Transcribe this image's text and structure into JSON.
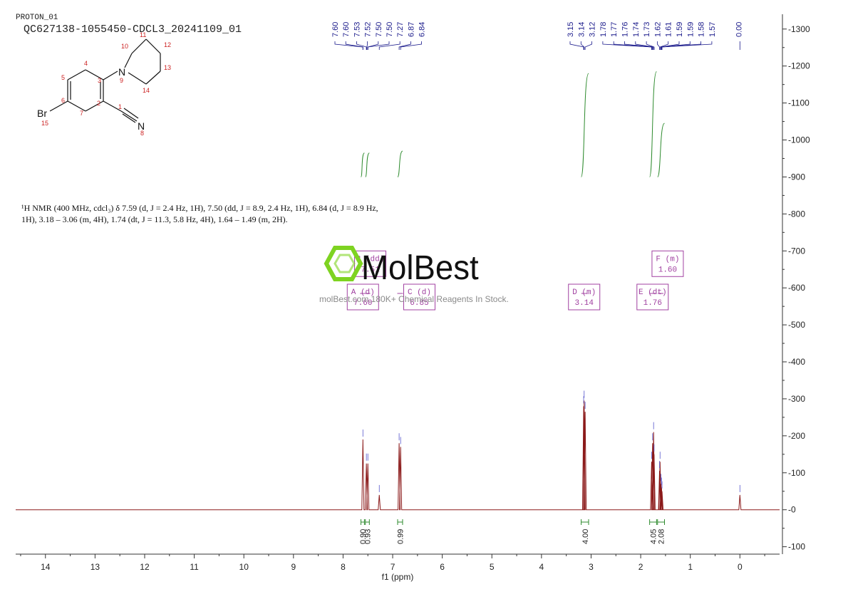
{
  "header": {
    "experiment": "PROTON_01",
    "sample": "QC627138-1055450-CDCL3_20241109_01"
  },
  "nmr_description": {
    "line1": "¹H NMR (400 MHz, cdcl₃) δ 7.59 (d, J = 2.4 Hz, 1H), 7.50 (dd, J = 8.9, 2.4 Hz, 1H), 6.84 (d, J = 8.9 Hz,",
    "line2": "1H), 3.18 – 3.06 (m, 4H), 1.74 (dt, J = 11.3, 5.8 Hz, 4H), 1.64 – 1.49 (m, 2H)."
  },
  "watermark": {
    "brand": "MolBest",
    "tagline": "molBest.com,180K+ Chemical Reagents In Stock.",
    "color": "#7ed321"
  },
  "molecule": {
    "atoms": [
      "N",
      "N",
      "Br"
    ],
    "numbers": [
      "1",
      "2",
      "3",
      "4",
      "5",
      "6",
      "7",
      "8",
      "9",
      "10",
      "11",
      "12",
      "13",
      "14",
      "15"
    ]
  },
  "colors": {
    "spectrum": "#8b1a1a",
    "integral": "#2e8b2e",
    "peak_label": "#1a1a8b",
    "multiplet_box": "#a040a0"
  },
  "chart_data": {
    "type": "line",
    "xlabel": "f1 (ppm)",
    "xlim": [
      14.6,
      -0.8
    ],
    "ylim": [
      -120,
      1340
    ],
    "x_ticks": [
      14,
      13,
      12,
      11,
      10,
      9,
      8,
      7,
      6,
      5,
      4,
      3,
      2,
      1,
      0
    ],
    "y_ticks": [
      -100,
      0,
      100,
      200,
      300,
      400,
      500,
      600,
      700,
      800,
      900,
      1000,
      1100,
      1200,
      1300
    ],
    "grid": false,
    "peaks": [
      {
        "ppm": 7.6,
        "height": 190
      },
      {
        "ppm": 7.53,
        "height": 125
      },
      {
        "ppm": 7.5,
        "height": 125
      },
      {
        "ppm": 7.27,
        "height": 40
      },
      {
        "ppm": 6.87,
        "height": 180
      },
      {
        "ppm": 6.84,
        "height": 170
      },
      {
        "ppm": 3.15,
        "height": 280
      },
      {
        "ppm": 3.14,
        "height": 295
      },
      {
        "ppm": 3.12,
        "height": 265
      },
      {
        "ppm": 1.78,
        "height": 130
      },
      {
        "ppm": 1.76,
        "height": 180
      },
      {
        "ppm": 1.74,
        "height": 210
      },
      {
        "ppm": 1.73,
        "height": 150
      },
      {
        "ppm": 1.62,
        "height": 105
      },
      {
        "ppm": 1.61,
        "height": 130
      },
      {
        "ppm": 1.59,
        "height": 70
      },
      {
        "ppm": 1.58,
        "height": 60
      },
      {
        "ppm": 1.57,
        "height": 50
      },
      {
        "ppm": 0.0,
        "height": 40
      }
    ],
    "peak_labels": {
      "group1": [
        "7.60",
        "7.60",
        "7.53",
        "7.52",
        "7.50",
        "7.50",
        "7.27",
        "6.87",
        "6.84"
      ],
      "group2": [
        "3.15",
        "3.14",
        "3.12",
        "1.78",
        "1.77",
        "1.76",
        "1.74",
        "1.73",
        "1.62",
        "1.61",
        "1.59",
        "1.59",
        "1.58",
        "1.57"
      ],
      "tms": "0.00"
    },
    "integrals": [
      {
        "from": 7.64,
        "to": 7.57,
        "value": "0.90",
        "y_from": 900,
        "y_to": 965
      },
      {
        "from": 7.55,
        "to": 7.47,
        "value": "0.93",
        "y_from": 900,
        "y_to": 965
      },
      {
        "from": 6.9,
        "to": 6.8,
        "value": "0.99",
        "y_from": 900,
        "y_to": 970
      },
      {
        "from": 3.2,
        "to": 3.05,
        "value": "4.00",
        "y_from": 900,
        "y_to": 1180
      },
      {
        "from": 1.82,
        "to": 1.68,
        "value": "4.05",
        "y_from": 900,
        "y_to": 1185
      },
      {
        "from": 1.66,
        "to": 1.52,
        "value": "2.08",
        "y_from": 900,
        "y_to": 1045
      }
    ],
    "multiplets": [
      {
        "letter": "B (dd)",
        "shift": "7.51",
        "ppm": 7.51,
        "y": 700
      },
      {
        "letter": "A (d)",
        "shift": "7.60",
        "ppm": 7.6,
        "y": 610
      },
      {
        "letter": "C (d)",
        "shift": "6.85",
        "ppm": 6.85,
        "y": 610
      },
      {
        "letter": "D (m)",
        "shift": "3.14",
        "ppm": 3.14,
        "y": 610
      },
      {
        "letter": "E (dt)",
        "shift": "1.76",
        "ppm": 1.76,
        "y": 610
      },
      {
        "letter": "F (m)",
        "shift": "1.60",
        "ppm": 1.6,
        "y": 700
      }
    ]
  }
}
